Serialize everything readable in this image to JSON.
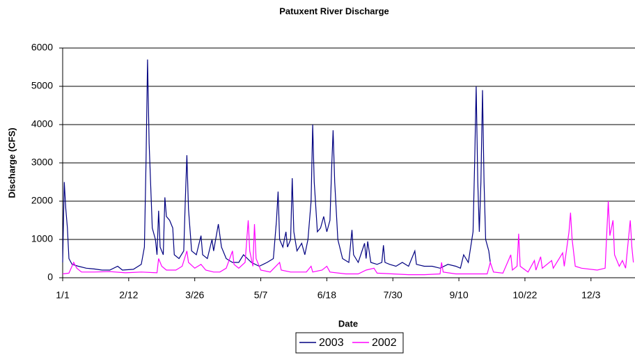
{
  "chart_data": {
    "type": "line",
    "title": "Patuxent River Discharge",
    "x_label": "Date",
    "y_label": "Discharge (CFS)",
    "xlim": [
      0,
      364
    ],
    "xticks": [
      {
        "value": 0,
        "label": "1/1"
      },
      {
        "value": 42,
        "label": "2/12"
      },
      {
        "value": 84,
        "label": "3/26"
      },
      {
        "value": 126,
        "label": "5/7"
      },
      {
        "value": 168,
        "label": "6/18"
      },
      {
        "value": 210,
        "label": "7/30"
      },
      {
        "value": 252,
        "label": "9/10"
      },
      {
        "value": 294,
        "label": "10/22"
      },
      {
        "value": 336,
        "label": "12/3"
      }
    ],
    "ylim": [
      0,
      6000
    ],
    "yticks": [
      0,
      1000,
      2000,
      3000,
      4000,
      5000,
      6000
    ],
    "grid": true,
    "series": [
      {
        "name": "2003",
        "color": "#000080",
        "x": [
          0,
          1,
          2,
          3,
          4,
          6,
          10,
          15,
          20,
          25,
          30,
          35,
          38,
          45,
          50,
          52,
          53,
          54,
          55,
          57,
          59,
          60,
          61,
          62,
          64,
          65,
          66,
          68,
          70,
          71,
          74,
          77,
          78,
          79,
          80,
          82,
          85,
          88,
          89,
          92,
          95,
          96,
          99,
          101,
          104,
          108,
          112,
          115,
          120,
          125,
          130,
          134,
          136,
          137,
          138,
          140,
          142,
          143,
          145,
          146,
          147,
          149,
          152,
          154,
          156,
          158,
          159,
          160,
          162,
          164,
          166,
          168,
          170,
          171,
          172,
          173,
          175,
          178,
          182,
          184,
          185,
          188,
          192,
          193,
          194,
          196,
          200,
          203,
          204,
          205,
          208,
          212,
          216,
          220,
          224,
          225,
          230,
          235,
          240,
          245,
          250,
          253,
          255,
          258,
          261,
          262,
          263,
          264,
          265,
          266,
          267,
          268,
          269,
          271,
          272
        ],
        "values": [
          400,
          2500,
          1800,
          1300,
          500,
          350,
          300,
          250,
          230,
          200,
          200,
          300,
          200,
          220,
          350,
          800,
          3000,
          5700,
          3500,
          1300,
          1000,
          600,
          1750,
          800,
          600,
          2100,
          1600,
          1500,
          1300,
          600,
          500,
          700,
          2000,
          3200,
          1800,
          700,
          600,
          1100,
          600,
          500,
          1000,
          700,
          1400,
          800,
          500,
          400,
          400,
          600,
          400,
          300,
          400,
          500,
          1500,
          2250,
          1000,
          800,
          1200,
          800,
          1000,
          2600,
          1200,
          700,
          900,
          600,
          1000,
          2000,
          4000,
          2500,
          1200,
          1300,
          1600,
          1200,
          1500,
          2800,
          3850,
          2500,
          1000,
          500,
          400,
          1250,
          600,
          400,
          900,
          500,
          950,
          400,
          350,
          400,
          850,
          400,
          350,
          300,
          400,
          300,
          700,
          350,
          300,
          300,
          250,
          350,
          300,
          250,
          600,
          400,
          1200,
          3000,
          5000,
          2500,
          1200,
          2500,
          4900,
          2500,
          1000,
          700,
          400
        ]
      },
      {
        "name": "2002",
        "color": "#ff00ff",
        "x": [
          0,
          4,
          7,
          9,
          12,
          20,
          30,
          40,
          50,
          60,
          61,
          63,
          66,
          72,
          76,
          79,
          80,
          84,
          88,
          91,
          96,
          100,
          104,
          108,
          109,
          112,
          116,
          118,
          119,
          121,
          122,
          123,
          126,
          132,
          138,
          139,
          145,
          150,
          155,
          158,
          159,
          165,
          168,
          170,
          180,
          188,
          193,
          198,
          200,
          210,
          220,
          230,
          240,
          241,
          242,
          250,
          260,
          270,
          272,
          274,
          280,
          284,
          285,
          286,
          289,
          290,
          291,
          296,
          300,
          301,
          304,
          305,
          311,
          312,
          318,
          319,
          322,
          323,
          324,
          326,
          330,
          340,
          345,
          347,
          348,
          350,
          351,
          354,
          356,
          358,
          361,
          362,
          363
        ],
        "values": [
          100,
          120,
          400,
          250,
          150,
          150,
          160,
          130,
          150,
          130,
          500,
          300,
          200,
          200,
          300,
          700,
          400,
          250,
          350,
          200,
          150,
          150,
          250,
          700,
          350,
          250,
          400,
          1500,
          700,
          300,
          1400,
          500,
          200,
          150,
          400,
          200,
          150,
          150,
          150,
          300,
          150,
          200,
          300,
          150,
          100,
          100,
          200,
          250,
          120,
          100,
          80,
          80,
          100,
          400,
          150,
          100,
          100,
          100,
          400,
          150,
          120,
          500,
          600,
          200,
          300,
          1150,
          300,
          150,
          450,
          200,
          550,
          250,
          450,
          250,
          650,
          300,
          1200,
          1700,
          1000,
          300,
          250,
          200,
          250,
          2000,
          1100,
          1500,
          600,
          300,
          450,
          250,
          1500,
          800,
          400
        ]
      }
    ]
  }
}
